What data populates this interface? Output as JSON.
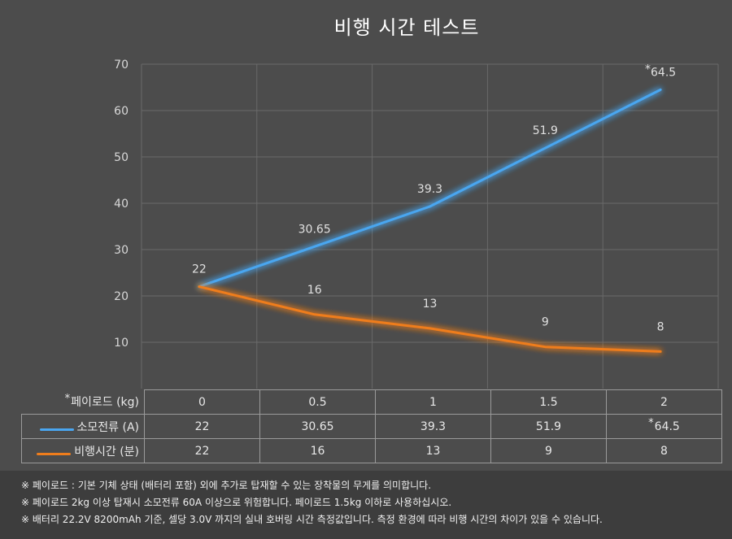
{
  "chart_data": {
    "type": "line",
    "title": "비행 시간 테스트",
    "categories": [
      "0",
      "0.5",
      "1",
      "1.5",
      "2"
    ],
    "ylim": [
      0,
      70
    ],
    "yticks": [
      10,
      20,
      30,
      40,
      50,
      60,
      70
    ],
    "grid": true,
    "series": [
      {
        "name": "소모전류 (A)",
        "color": "#4aa6f0",
        "values": [
          22,
          30.65,
          39.3,
          51.9,
          64.5
        ],
        "labels": [
          "22",
          "30.65",
          "39.3",
          "51.9",
          "64.5"
        ],
        "starred_last": true
      },
      {
        "name": "비행시간 (분)",
        "color": "#ef7d1c",
        "values": [
          22,
          16,
          13,
          9,
          8
        ],
        "labels": [
          "",
          "16",
          "13",
          "9",
          "8"
        ],
        "starred_last": false
      }
    ],
    "table": {
      "header_label": "페이로드 (kg)",
      "header_star": "*",
      "columns": [
        "0",
        "0.5",
        "1",
        "1.5",
        "2"
      ],
      "rows": [
        {
          "label": "소모전류 (A)",
          "values": [
            "22",
            "30.65",
            "39.3",
            "51.9",
            "64.5"
          ],
          "last_star": "*"
        },
        {
          "label": "비행시간 (분)",
          "values": [
            "22",
            "16",
            "13",
            "9",
            "8"
          ],
          "last_star": ""
        }
      ]
    }
  },
  "notes": [
    "※ 페이로드 : 기본 기체 상태 (배터리 포함) 외에 추가로 탑재할 수 있는 장착물의 무게를 의미합니다.",
    "※ 페이로드 2kg 이상 탑재시 소모전류 60A 이상으로 위험합니다. 페이로드 1.5kg 이하로 사용하십시오.",
    "※ 배터리 22.2V 8200mAh 기준, 셀당 3.0V 까지의 실내 호버링 시간 측정값입니다. 측정 환경에 따라 비행 시간의 차이가 있을 수 있습니다."
  ]
}
